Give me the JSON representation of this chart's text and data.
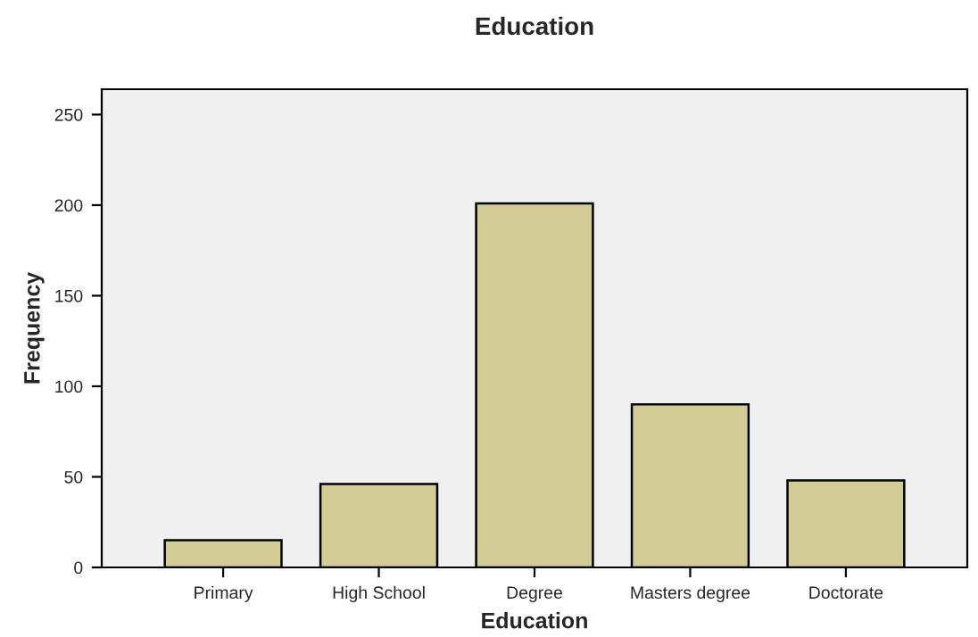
{
  "chart_data": {
    "type": "bar",
    "title": "Education",
    "xlabel": "Education",
    "ylabel": "Frequency",
    "categories": [
      "Primary",
      "High School",
      "Degree",
      "Masters degree",
      "Doctorate"
    ],
    "values": [
      15,
      46,
      201,
      90,
      48
    ],
    "color": "#d2cc94",
    "ylim": [
      0,
      264
    ],
    "yticks": [
      0,
      50,
      100,
      150,
      200,
      250
    ],
    "grid": false
  }
}
